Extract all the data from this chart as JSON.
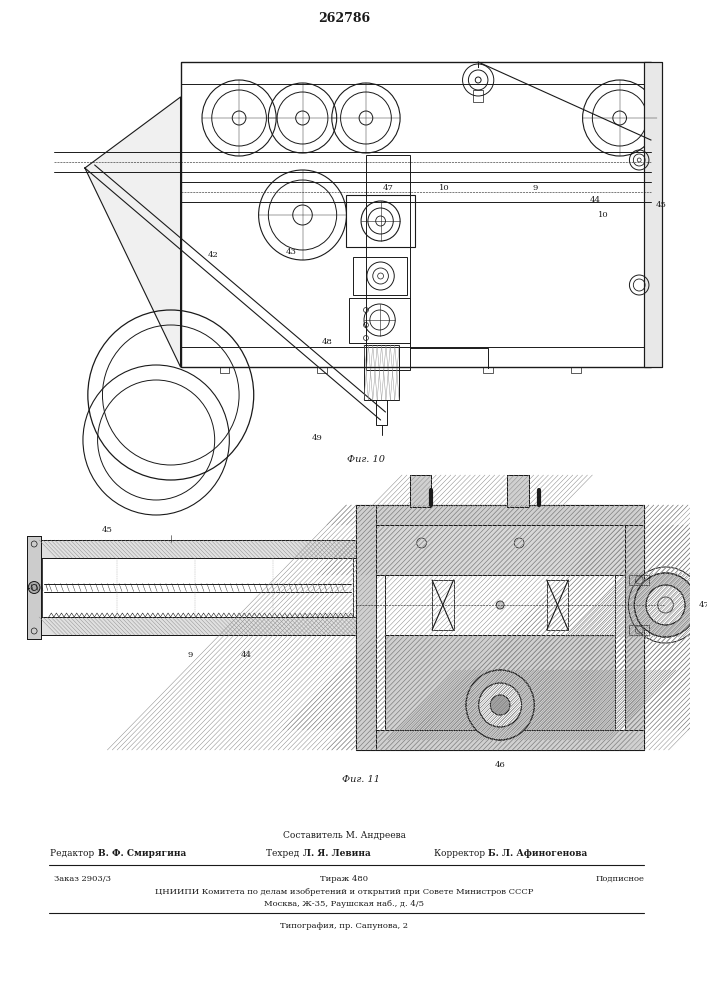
{
  "title_number": "262786",
  "fig10_label": "Фиг. 10",
  "fig11_label": "Фиг. 11",
  "footer_composer": "Составитель М. Андреева",
  "footer_editor_label": "Редактор",
  "footer_editor_name": "В. Ф. Смирягина",
  "footer_tech_label": "Техред",
  "footer_tech_name": "Л. Я. Левина",
  "footer_corr_label": "Корректор",
  "footer_corr_name": "Б. Л. Афиногенова",
  "footer_order": "Заказ 2903/3",
  "footer_print": "Тираж 480",
  "footer_subscription": "Подписное",
  "footer_org": "ЦНИИПИ Комитета по делам изобретений и открытий при Совете Министров СССР",
  "footer_address": "Москва, Ж-35, Раушская наб., д. 4/5",
  "footer_typography": "Типография, пр. Сапунова, 2",
  "bg_color": "#ffffff",
  "lc": "#1a1a1a",
  "hatch_color": "#888888"
}
